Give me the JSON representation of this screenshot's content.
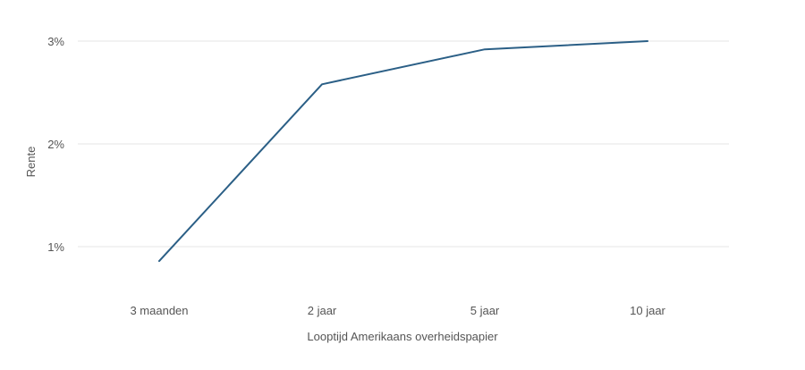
{
  "chart_data": {
    "type": "line",
    "categories": [
      "3 maanden",
      "2 jaar",
      "5 jaar",
      "10 jaar"
    ],
    "series": [
      {
        "values": [
          0.86,
          2.58,
          2.92,
          3.0
        ]
      }
    ],
    "xlabel": "Looptijd Amerikaans overheidspapier",
    "ylabel": "Rente",
    "ylim": [
      0.6,
      3.0
    ],
    "yticks": [
      1,
      2,
      3
    ],
    "ytick_labels": [
      "1%",
      "2%",
      "3%"
    ],
    "grid": true,
    "legend": "none",
    "colors": {
      "line": "#2b5f86",
      "grid": "#e6e6e6",
      "text": "#555555"
    }
  }
}
